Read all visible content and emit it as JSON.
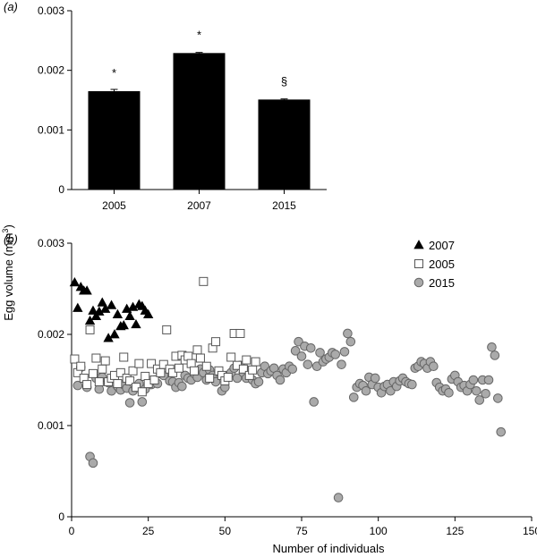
{
  "figure": {
    "ylabel": "Egg volume (mm",
    "ylabel_sup": "3",
    "ylabel_close": ")"
  },
  "chart_data": [
    {
      "panel": "(a)",
      "type": "bar",
      "categories": [
        "2005",
        "2007",
        "2015"
      ],
      "values": [
        0.00165,
        0.00229,
        0.00151
      ],
      "errors": [
        3e-05,
        1e-05,
        1e-05
      ],
      "annotations": [
        "*",
        "*",
        "§"
      ],
      "yticks": [
        "0",
        "0.001",
        "0.002",
        "0.003"
      ],
      "ylim": [
        0,
        0.003
      ],
      "bar_color": "#000000",
      "grid": false
    },
    {
      "panel": "(b)",
      "type": "scatter",
      "xlabel": "Number of individuals",
      "xticks": [
        "0",
        "25",
        "50",
        "75",
        "100",
        "125",
        "150"
      ],
      "yticks": [
        "0",
        "0.001",
        "0.002",
        "0.003"
      ],
      "xlim": [
        0,
        150
      ],
      "ylim": [
        0,
        0.003
      ],
      "grid": false,
      "legend_position": "top-right",
      "series": [
        {
          "name": "2007",
          "marker": "triangle",
          "color": "#000000",
          "points": [
            [
              1,
              0.00257
            ],
            [
              2,
              0.00229
            ],
            [
              3,
              0.00252
            ],
            [
              4,
              0.00248
            ],
            [
              5,
              0.00248
            ],
            [
              6,
              0.00215
            ],
            [
              7,
              0.00226
            ],
            [
              8,
              0.0022
            ],
            [
              9,
              0.00225
            ],
            [
              10,
              0.00235
            ],
            [
              11,
              0.00228
            ],
            [
              12,
              0.00196
            ],
            [
              13,
              0.00232
            ],
            [
              14,
              0.002
            ],
            [
              15,
              0.00222
            ],
            [
              16,
              0.00209
            ],
            [
              17,
              0.0021
            ],
            [
              18,
              0.00228
            ],
            [
              19,
              0.0022
            ],
            [
              20,
              0.0023
            ],
            [
              21,
              0.00211
            ],
            [
              22,
              0.00233
            ],
            [
              23,
              0.00231
            ],
            [
              24,
              0.00226
            ],
            [
              25,
              0.00222
            ]
          ]
        },
        {
          "name": "2005",
          "marker": "square",
          "color": "#ffffff",
          "points": [
            [
              1,
              0.00173
            ],
            [
              2,
              0.00158
            ],
            [
              3,
              0.00165
            ],
            [
              4,
              0.00152
            ],
            [
              5,
              0.00145
            ],
            [
              6,
              0.00205
            ],
            [
              7,
              0.00157
            ],
            [
              8,
              0.00174
            ],
            [
              9,
              0.00148
            ],
            [
              10,
              0.00162
            ],
            [
              11,
              0.00171
            ],
            [
              12,
              0.00148
            ],
            [
              13,
              0.00152
            ],
            [
              14,
              0.00155
            ],
            [
              15,
              0.00146
            ],
            [
              16,
              0.00158
            ],
            [
              17,
              0.00175
            ],
            [
              18,
              0.00152
            ],
            [
              19,
              0.00149
            ],
            [
              20,
              0.0016
            ],
            [
              21,
              0.00142
            ],
            [
              22,
              0.00168
            ],
            [
              23,
              0.00137
            ],
            [
              24,
              0.00154
            ],
            [
              25,
              0.00146
            ],
            [
              26,
              0.00168
            ],
            [
              27,
              0.0015
            ],
            [
              28,
              0.00162
            ],
            [
              29,
              0.00158
            ],
            [
              30,
              0.00167
            ],
            [
              31,
              0.00205
            ],
            [
              32,
              0.00162
            ],
            [
              33,
              0.00158
            ],
            [
              34,
              0.00176
            ],
            [
              35,
              0.00163
            ],
            [
              36,
              0.00177
            ],
            [
              37,
              0.00172
            ],
            [
              38,
              0.00176
            ],
            [
              39,
              0.00168
            ],
            [
              40,
              0.0016
            ],
            [
              41,
              0.00183
            ],
            [
              42,
              0.00174
            ],
            [
              43,
              0.00258
            ],
            [
              44,
              0.00165
            ],
            [
              45,
              0.00152
            ],
            [
              46,
              0.00185
            ],
            [
              47,
              0.00192
            ],
            [
              48,
              0.0016
            ],
            [
              49,
              0.00155
            ],
            [
              50,
              0.00149
            ],
            [
              51,
              0.00153
            ],
            [
              52,
              0.00175
            ],
            [
              53,
              0.00201
            ],
            [
              54,
              0.00166
            ],
            [
              55,
              0.00201
            ],
            [
              56,
              0.00162
            ],
            [
              57,
              0.00172
            ],
            [
              58,
              0.00155
            ],
            [
              59,
              0.00161
            ],
            [
              60,
              0.0017
            ]
          ]
        },
        {
          "name": "2015",
          "marker": "circle",
          "color": "#aaaaaa",
          "points": [
            [
              2,
              0.00144
            ],
            [
              3,
              0.00164
            ],
            [
              5,
              0.00142
            ],
            [
              6,
              0.00066
            ],
            [
              7,
              0.00059
            ],
            [
              8,
              0.00152
            ],
            [
              9,
              0.0014
            ],
            [
              10,
              0.00153
            ],
            [
              12,
              0.00147
            ],
            [
              13,
              0.00138
            ],
            [
              15,
              0.00143
            ],
            [
              16,
              0.00139
            ],
            [
              17,
              0.00145
            ],
            [
              18,
              0.00141
            ],
            [
              19,
              0.00125
            ],
            [
              20,
              0.00138
            ],
            [
              21,
              0.00142
            ],
            [
              22,
              0.00146
            ],
            [
              23,
              0.00126
            ],
            [
              24,
              0.0014
            ],
            [
              26,
              0.00145
            ],
            [
              27,
              0.0015
            ],
            [
              28,
              0.00146
            ],
            [
              29,
              0.00157
            ],
            [
              30,
              0.00155
            ],
            [
              32,
              0.00149
            ],
            [
              33,
              0.00148
            ],
            [
              34,
              0.00142
            ],
            [
              35,
              0.00147
            ],
            [
              36,
              0.00143
            ],
            [
              37,
              0.00155
            ],
            [
              38,
              0.00152
            ],
            [
              39,
              0.0015
            ],
            [
              40,
              0.00157
            ],
            [
              41,
              0.00153
            ],
            [
              42,
              0.00162
            ],
            [
              43,
              0.00158
            ],
            [
              44,
              0.0015
            ],
            [
              45,
              0.00161
            ],
            [
              46,
              0.00155
            ],
            [
              47,
              0.00148
            ],
            [
              48,
              0.00159
            ],
            [
              49,
              0.00138
            ],
            [
              50,
              0.00142
            ],
            [
              51,
              0.00155
            ],
            [
              52,
              0.00158
            ],
            [
              53,
              0.00163
            ],
            [
              54,
              0.00152
            ],
            [
              55,
              0.00166
            ],
            [
              56,
              0.00158
            ],
            [
              57,
              0.00152
            ],
            [
              58,
              0.0016
            ],
            [
              59,
              0.0015
            ],
            [
              60,
              0.00146
            ],
            [
              61,
              0.00148
            ],
            [
              62,
              0.00158
            ],
            [
              63,
              0.00165
            ],
            [
              64,
              0.00157
            ],
            [
              65,
              0.0016
            ],
            [
              66,
              0.00163
            ],
            [
              67,
              0.00155
            ],
            [
              68,
              0.0015
            ],
            [
              69,
              0.00162
            ],
            [
              70,
              0.00158
            ],
            [
              71,
              0.00165
            ],
            [
              72,
              0.00162
            ],
            [
              73,
              0.00182
            ],
            [
              74,
              0.00192
            ],
            [
              75,
              0.00176
            ],
            [
              76,
              0.00187
            ],
            [
              77,
              0.00167
            ],
            [
              78,
              0.00185
            ],
            [
              79,
              0.00126
            ],
            [
              80,
              0.00165
            ],
            [
              81,
              0.0018
            ],
            [
              82,
              0.0017
            ],
            [
              83,
              0.00173
            ],
            [
              84,
              0.00175
            ],
            [
              85,
              0.0018
            ],
            [
              86,
              0.00178
            ],
            [
              87,
              0.00021
            ],
            [
              88,
              0.00167
            ],
            [
              89,
              0.00181
            ],
            [
              90,
              0.00201
            ],
            [
              91,
              0.00192
            ],
            [
              92,
              0.00131
            ],
            [
              93,
              0.00142
            ],
            [
              94,
              0.00146
            ],
            [
              95,
              0.00144
            ],
            [
              96,
              0.00138
            ],
            [
              97,
              0.00153
            ],
            [
              98,
              0.00145
            ],
            [
              99,
              0.00152
            ],
            [
              100,
              0.00142
            ],
            [
              101,
              0.00136
            ],
            [
              102,
              0.00143
            ],
            [
              103,
              0.00145
            ],
            [
              104,
              0.00138
            ],
            [
              105,
              0.00148
            ],
            [
              106,
              0.00143
            ],
            [
              107,
              0.00149
            ],
            [
              108,
              0.00152
            ],
            [
              109,
              0.00148
            ],
            [
              110,
              0.00146
            ],
            [
              111,
              0.00145
            ],
            [
              112,
              0.00163
            ],
            [
              113,
              0.00165
            ],
            [
              114,
              0.0017
            ],
            [
              115,
              0.00168
            ],
            [
              116,
              0.00163
            ],
            [
              117,
              0.0017
            ],
            [
              118,
              0.00165
            ],
            [
              119,
              0.00147
            ],
            [
              120,
              0.00142
            ],
            [
              121,
              0.00138
            ],
            [
              122,
              0.0014
            ],
            [
              123,
              0.00136
            ],
            [
              124,
              0.00151
            ],
            [
              125,
              0.00155
            ],
            [
              126,
              0.00148
            ],
            [
              127,
              0.00142
            ],
            [
              128,
              0.00144
            ],
            [
              129,
              0.00138
            ],
            [
              130,
              0.00145
            ],
            [
              131,
              0.0015
            ],
            [
              132,
              0.00138
            ],
            [
              133,
              0.00128
            ],
            [
              134,
              0.0015
            ],
            [
              135,
              0.00135
            ],
            [
              136,
              0.0015
            ],
            [
              137,
              0.00186
            ],
            [
              138,
              0.00177
            ],
            [
              139,
              0.0013
            ],
            [
              140,
              0.00093
            ]
          ]
        }
      ]
    }
  ]
}
